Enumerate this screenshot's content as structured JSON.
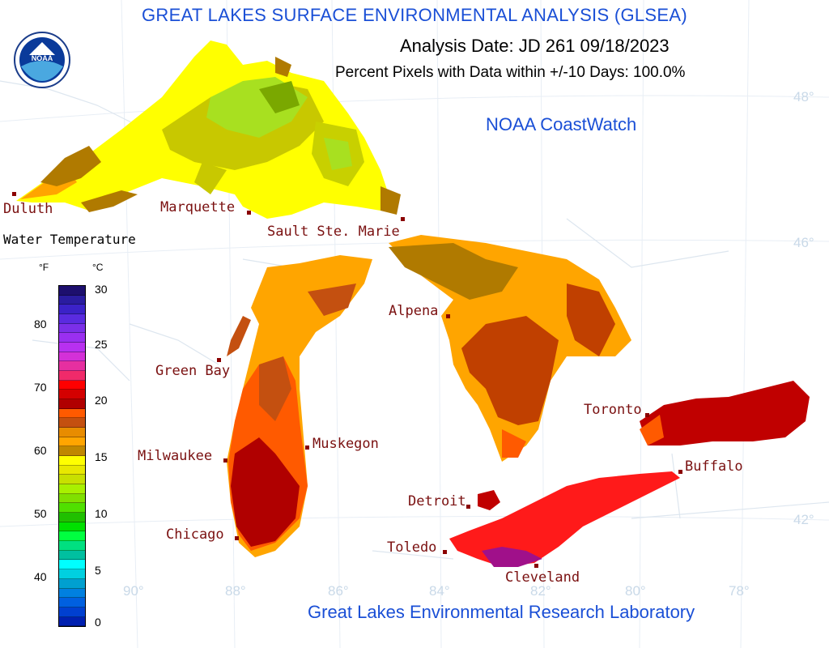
{
  "header": {
    "title": "GREAT LAKES SURFACE ENVIRONMENTAL ANALYSIS (GLSEA)",
    "analysis_date": "Analysis Date:  JD 261 09/18/2023",
    "percent_pixels": "Percent Pixels with Data within +/-10 Days: 100.0%",
    "brand": "NOAA CoastWatch",
    "lab": "Great Lakes Environmental Research Laboratory",
    "logo_text": "NOAA"
  },
  "legend": {
    "title": "Water Temperature",
    "unit_f": "°F",
    "unit_c": "°C",
    "f_ticks": [
      "80",
      "70",
      "60",
      "50",
      "40"
    ],
    "c_ticks": [
      "30",
      "25",
      "20",
      "15",
      "10",
      "5",
      "0"
    ],
    "colors": [
      "#1d0f6e",
      "#2a1ca0",
      "#3b22c8",
      "#5a2be0",
      "#7b2fe8",
      "#9a2ff0",
      "#b830f0",
      "#d430d8",
      "#e62fa0",
      "#f02a6a",
      "#ff0000",
      "#d40000",
      "#b00000",
      "#ff5a00",
      "#c45010",
      "#e88c00",
      "#ffa500",
      "#c08800",
      "#ffff00",
      "#e8e800",
      "#c8e000",
      "#a8f000",
      "#80e000",
      "#50e000",
      "#20c000",
      "#00e000",
      "#00ff40",
      "#00e080",
      "#00c0a0",
      "#00ffff",
      "#00d0e0",
      "#00a0d0",
      "#0080e0",
      "#0060e0",
      "#0040d0",
      "#0020b0"
    ]
  },
  "cities": {
    "duluth": "Duluth",
    "marquette": "Marquette",
    "sault": "Sault Ste. Marie",
    "alpena": "Alpena",
    "green_bay": "Green Bay",
    "milwaukee": "Milwaukee",
    "muskegon": "Muskegon",
    "chicago": "Chicago",
    "detroit": "Detroit",
    "toledo": "Toledo",
    "cleveland": "Cleveland",
    "toronto": "Toronto",
    "buffalo": "Buffalo"
  },
  "graticule": {
    "lat": [
      "48°",
      "46°",
      "42°"
    ],
    "lon": [
      "90°",
      "88°",
      "86°",
      "84°",
      "82°",
      "80°",
      "78°"
    ]
  },
  "colors": {
    "title_blue": "#1a4fd6",
    "city_red": "#7a1010"
  }
}
